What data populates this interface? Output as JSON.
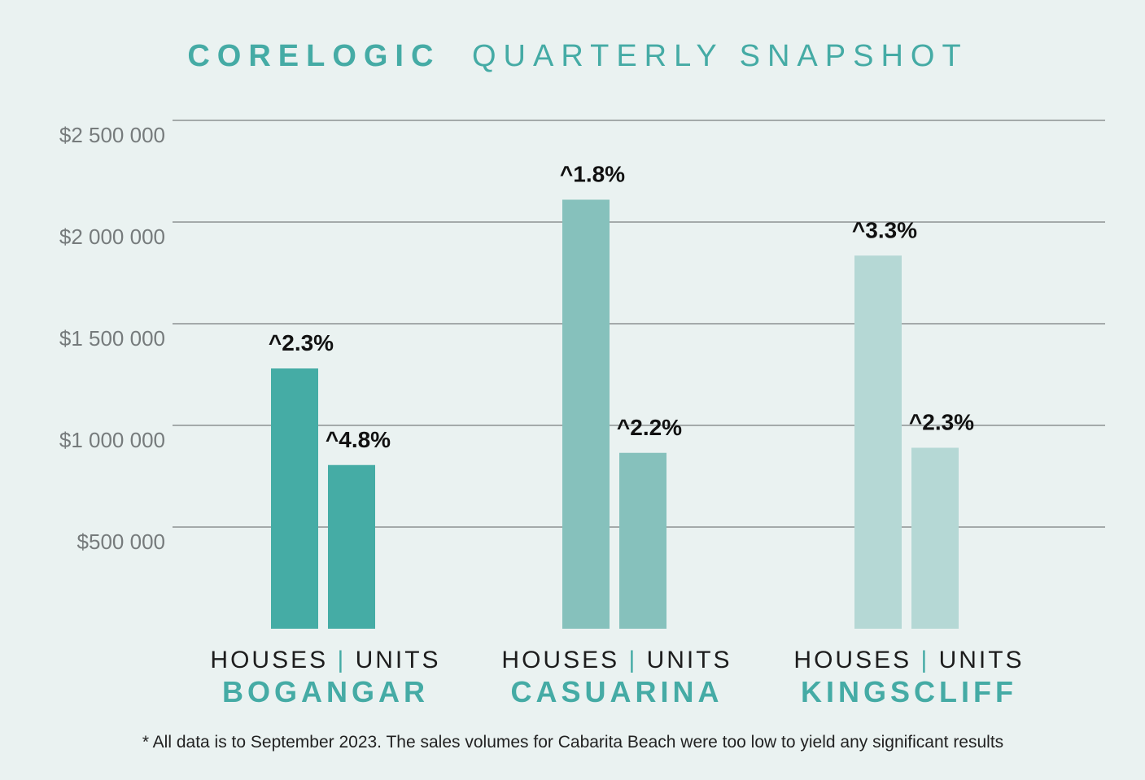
{
  "title_bold": "CORELOGIC",
  "title_light": "QUARTERLY SNAPSHOT",
  "footnote": "* All data is to September 2023. The sales volumes for Cabarita Beach were too low to yield any significant results",
  "colors": {
    "background": "#eaf2f1",
    "title": "#45aba5",
    "grid": "#7a7f80",
    "tick_text": "#767b7c",
    "label_text": "#111111",
    "category_text": "#45aba5",
    "separator": "#45aba5",
    "series_bogangar": "#45aca5",
    "series_casuarina": "#86c1bc",
    "series_kingscliff": "#b5d8d5"
  },
  "chart_data": {
    "type": "bar",
    "title": "CORELOGIC QUARTERLY SNAPSHOT",
    "xlabel": "",
    "ylabel": "",
    "ylim": [
      0,
      2500000
    ],
    "yticks": [
      500000,
      1000000,
      1500000,
      2000000,
      2500000
    ],
    "ytick_labels": [
      "$500 000",
      "$1 000 000",
      "$1 500 000",
      "$2 000 000",
      "$2 500 000"
    ],
    "grid": true,
    "legend": "none",
    "sub_labels": [
      "HOUSES",
      "UNITS"
    ],
    "sub_separator": "|",
    "categories": [
      "BOGANGAR",
      "CASUARINA",
      "KINGSCLIFF"
    ],
    "groups": [
      {
        "category": "BOGANGAR",
        "color_key": "series_bogangar",
        "bars": [
          {
            "sub": "HOUSES",
            "value": 1280000,
            "label": "^2.3%"
          },
          {
            "sub": "UNITS",
            "value": 805000,
            "label": "^4.8%"
          }
        ]
      },
      {
        "category": "CASUARINA",
        "color_key": "series_casuarina",
        "bars": [
          {
            "sub": "HOUSES",
            "value": 2110000,
            "label": "^1.8%"
          },
          {
            "sub": "UNITS",
            "value": 865000,
            "label": "^2.2%"
          }
        ]
      },
      {
        "category": "KINGSCLIFF",
        "color_key": "series_kingscliff",
        "bars": [
          {
            "sub": "HOUSES",
            "value": 1835000,
            "label": "^3.3%"
          },
          {
            "sub": "UNITS",
            "value": 890000,
            "label": "^2.3%"
          }
        ]
      }
    ]
  }
}
